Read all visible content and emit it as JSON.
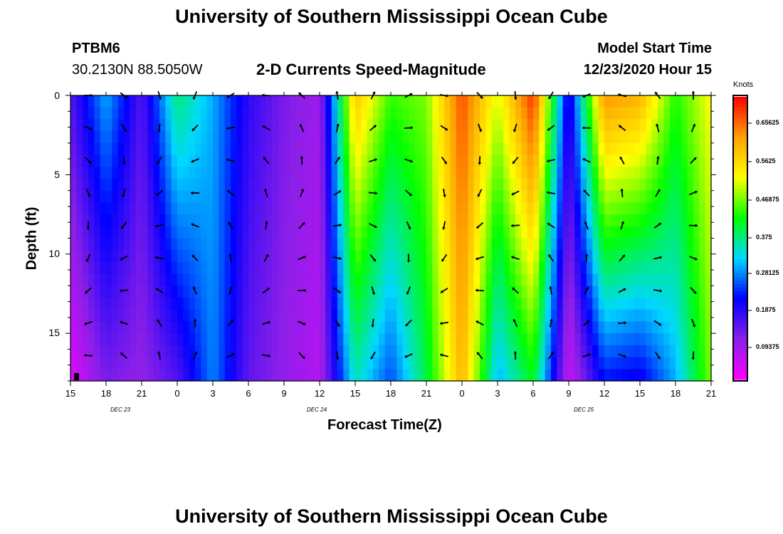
{
  "page": {
    "title_top": "University of Southern Mississippi Ocean Cube",
    "title_bottom": "University of Southern Mississippi Ocean Cube"
  },
  "header": {
    "station": "PTBM6",
    "coords": "30.2130N 88.5050W",
    "subtitle": "2-D Currents Speed-Magnitude",
    "model_label": "Model Start Time",
    "model_time": "12/23/2020 Hour 15"
  },
  "colorbar": {
    "unit": "Knots",
    "labels": [
      "0.65625",
      "0.5625",
      "0.46875",
      "0.375",
      "0.28125",
      "0.1875",
      "0.09375"
    ],
    "colors": [
      "#ff00ff",
      "#8b1fe8",
      "#0000ff",
      "#00d8ff",
      "#00ff00",
      "#ffff00",
      "#ffa000",
      "#ff0000"
    ]
  },
  "chart_data": {
    "type": "heatmap",
    "title": "2-D Currents Speed-Magnitude",
    "xlabel": "Forecast Time(Z)",
    "ylabel": "Depth (ft)",
    "ylim": [
      0,
      18
    ],
    "x_tick_labels": [
      "15",
      "18",
      "21",
      "0",
      "3",
      "6",
      "9",
      "12",
      "15",
      "18",
      "21",
      "0",
      "3",
      "6",
      "9",
      "12",
      "15",
      "18",
      "21"
    ],
    "y_tick_labels": [
      "0",
      "5",
      "10",
      "15"
    ],
    "day_labels": [
      "DEC 23",
      "DEC 24",
      "DEC 25"
    ],
    "colorbar_range": [
      0,
      0.75
    ],
    "columns": [
      {
        "h": 0,
        "top": 0.15,
        "bot": 0.03
      },
      {
        "h": 3,
        "top": 0.3,
        "bot": 0.12
      },
      {
        "h": 6,
        "top": 0.15,
        "bot": 0.1
      },
      {
        "h": 9,
        "top": 0.38,
        "bot": 0.15
      },
      {
        "h": 12,
        "top": 0.3,
        "bot": 0.28
      },
      {
        "h": 15,
        "top": 0.18,
        "bot": 0.14
      },
      {
        "h": 18,
        "top": 0.12,
        "bot": 0.1
      },
      {
        "h": 21,
        "top": 0.09,
        "bot": 0.07
      },
      {
        "h": 24,
        "top": 0.6,
        "bot": 0.35
      },
      {
        "h": 27,
        "top": 0.45,
        "bot": 0.25
      },
      {
        "h": 30,
        "top": 0.48,
        "bot": 0.4
      },
      {
        "h": 33,
        "top": 0.7,
        "bot": 0.62
      },
      {
        "h": 36,
        "top": 0.52,
        "bot": 0.3
      },
      {
        "h": 39,
        "top": 0.72,
        "bot": 0.42
      },
      {
        "h": 42,
        "top": 0.18,
        "bot": 0.05
      },
      {
        "h": 45,
        "top": 0.65,
        "bot": 0.22
      },
      {
        "h": 48,
        "top": 0.62,
        "bot": 0.2
      },
      {
        "h": 51,
        "top": 0.44,
        "bot": 0.3
      },
      {
        "h": 54,
        "top": 0.54,
        "bot": 0.48
      }
    ]
  }
}
